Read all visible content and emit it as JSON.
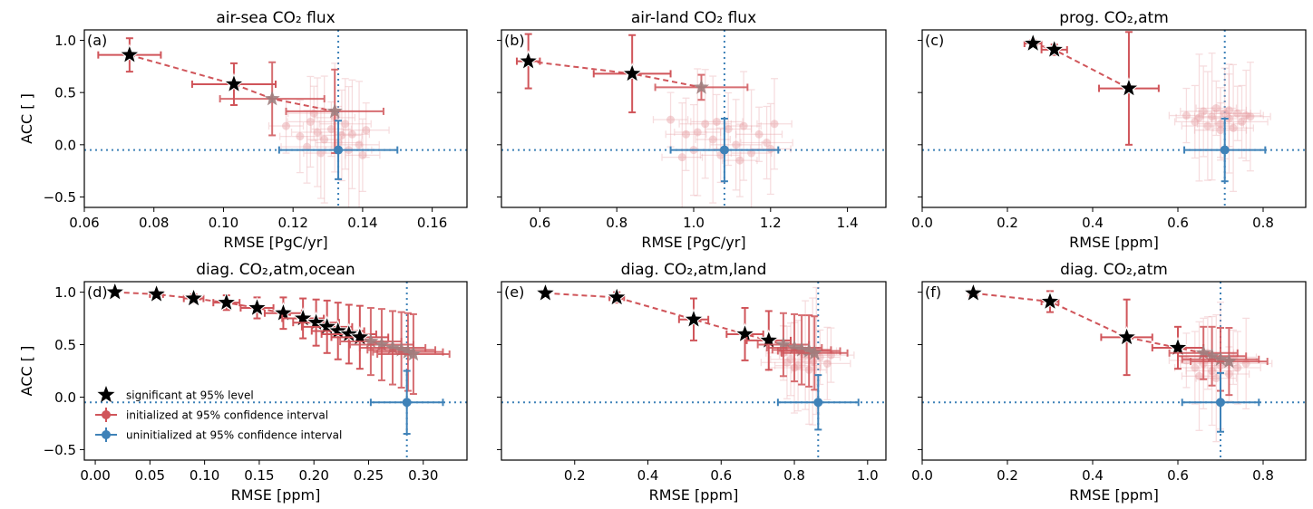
{
  "colors": {
    "initialized": "#d0555a",
    "initialized_faint": "#e7a0a4",
    "star_faded": "#9e7e7e",
    "uninitialized": "#3f82b8",
    "reference_line": "#3f82b8"
  },
  "chart_data": [
    {
      "type": "scatter",
      "panel_label": "(a)",
      "title": "air-sea CO₂ flux",
      "xlabel": "RMSE [PgC/yr]",
      "ylabel": "ACC [ ]",
      "xlim": [
        0.06,
        0.17
      ],
      "ylim": [
        -0.6,
        1.1
      ],
      "xticks": [
        0.06,
        0.08,
        0.1,
        0.12,
        0.14,
        0.16
      ],
      "xtick_labels": [
        "0.06",
        "0.08",
        "0.10",
        "0.12",
        "0.14",
        "0.16"
      ],
      "yticks": [
        -0.5,
        0.0,
        0.5,
        1.0
      ],
      "ytick_labels": [
        "−0.5",
        "0.0",
        "0.5",
        "1.0"
      ],
      "show_yticklabels": true,
      "initialized": [
        {
          "lead": 1,
          "x": 0.073,
          "y": 0.86,
          "xerr": 0.009,
          "yerr": 0.16,
          "significant": true,
          "label": "1"
        },
        {
          "lead": 2,
          "x": 0.103,
          "y": 0.58,
          "xerr": 0.012,
          "yerr": 0.2,
          "significant": true,
          "label": "2"
        },
        {
          "lead": 3,
          "x": 0.114,
          "y": 0.44,
          "xerr": 0.015,
          "yerr": 0.35,
          "significant": false,
          "label": ""
        },
        {
          "lead": 4,
          "x": 0.132,
          "y": 0.32,
          "xerr": 0.014,
          "yerr": 0.4,
          "significant": false,
          "label": ""
        }
      ],
      "faded_cloud": [
        [
          0.118,
          0.18
        ],
        [
          0.122,
          0.08
        ],
        [
          0.125,
          0.22
        ],
        [
          0.127,
          0.12
        ],
        [
          0.129,
          0.05
        ],
        [
          0.131,
          0.15
        ],
        [
          0.133,
          0.02
        ],
        [
          0.135,
          0.2
        ],
        [
          0.137,
          0.1
        ],
        [
          0.139,
          0.0
        ],
        [
          0.141,
          0.14
        ],
        [
          0.124,
          -0.02
        ],
        [
          0.128,
          -0.08
        ],
        [
          0.132,
          0.26
        ],
        [
          0.136,
          -0.05
        ],
        [
          0.126,
          0.3
        ],
        [
          0.14,
          -0.1
        ],
        [
          0.134,
          0.09
        ]
      ],
      "uninitialized": {
        "x": 0.133,
        "y": -0.05,
        "xerr": 0.017,
        "yerr": 0.28
      },
      "ref_lines": {
        "x": 0.133,
        "y": -0.05
      }
    },
    {
      "type": "scatter",
      "panel_label": "(b)",
      "title": "air-land CO₂ flux",
      "xlabel": "RMSE [PgC/yr]",
      "ylabel": "",
      "xlim": [
        0.5,
        1.5
      ],
      "ylim": [
        -0.6,
        1.1
      ],
      "xticks": [
        0.6,
        0.8,
        1.0,
        1.2,
        1.4
      ],
      "xtick_labels": [
        "0.6",
        "0.8",
        "1.0",
        "1.2",
        "1.4"
      ],
      "yticks": [
        -0.5,
        0.0,
        0.5,
        1.0
      ],
      "ytick_labels": [
        "−0.5",
        "0.0",
        "0.5",
        "1.0"
      ],
      "show_yticklabels": false,
      "initialized": [
        {
          "lead": 1,
          "x": 0.57,
          "y": 0.8,
          "xerr": 0.03,
          "yerr": 0.26,
          "significant": true,
          "label": "1"
        },
        {
          "lead": 2,
          "x": 0.84,
          "y": 0.68,
          "xerr": 0.1,
          "yerr": 0.37,
          "significant": true,
          "label": "2"
        },
        {
          "lead": 3,
          "x": 1.02,
          "y": 0.55,
          "xerr": 0.12,
          "yerr": 0.12,
          "significant": false,
          "label": ""
        }
      ],
      "faded_cloud": [
        [
          0.94,
          0.24
        ],
        [
          0.98,
          0.1
        ],
        [
          1.0,
          -0.05
        ],
        [
          1.03,
          0.2
        ],
        [
          1.05,
          0.05
        ],
        [
          1.07,
          -0.1
        ],
        [
          1.09,
          0.15
        ],
        [
          1.11,
          0.0
        ],
        [
          1.13,
          0.18
        ],
        [
          1.15,
          -0.08
        ],
        [
          1.17,
          0.1
        ],
        [
          1.19,
          0.02
        ],
        [
          1.21,
          0.2
        ],
        [
          0.97,
          -0.12
        ],
        [
          1.01,
          0.12
        ],
        [
          1.06,
          0.22
        ],
        [
          1.12,
          -0.15
        ],
        [
          1.2,
          -0.04
        ]
      ],
      "uninitialized": {
        "x": 1.08,
        "y": -0.05,
        "xerr": 0.14,
        "yerr": 0.3
      },
      "ref_lines": {
        "x": 1.08,
        "y": -0.05
      }
    },
    {
      "type": "scatter",
      "panel_label": "(c)",
      "title": "prog. CO₂,atm",
      "xlabel": "RMSE [ppm]",
      "ylabel": "",
      "xlim": [
        0.0,
        0.9
      ],
      "ylim": [
        -0.6,
        1.1
      ],
      "xticks": [
        0.0,
        0.2,
        0.4,
        0.6,
        0.8
      ],
      "xtick_labels": [
        "0.0",
        "0.2",
        "0.4",
        "0.6",
        "0.8"
      ],
      "yticks": [
        -0.5,
        0.0,
        0.5,
        1.0
      ],
      "ytick_labels": [
        "−0.5",
        "0.0",
        "0.5",
        "1.0"
      ],
      "show_yticklabels": false,
      "initialized": [
        {
          "lead": 1,
          "x": 0.26,
          "y": 0.97,
          "xerr": 0.02,
          "yerr": 0.03,
          "significant": true,
          "label": "1"
        },
        {
          "lead": 2,
          "x": 0.31,
          "y": 0.91,
          "xerr": 0.03,
          "yerr": 0.05,
          "significant": true,
          "label": "2"
        },
        {
          "lead": 3,
          "x": 0.485,
          "y": 0.54,
          "xerr": 0.07,
          "yerr": 0.54,
          "significant": true,
          "label": "3"
        }
      ],
      "faded_cloud": [
        [
          0.62,
          0.28
        ],
        [
          0.64,
          0.22
        ],
        [
          0.66,
          0.32
        ],
        [
          0.67,
          0.18
        ],
        [
          0.68,
          0.27
        ],
        [
          0.69,
          0.35
        ],
        [
          0.7,
          0.2
        ],
        [
          0.71,
          0.3
        ],
        [
          0.72,
          0.25
        ],
        [
          0.73,
          0.16
        ],
        [
          0.74,
          0.3
        ],
        [
          0.75,
          0.22
        ],
        [
          0.76,
          0.28
        ],
        [
          0.77,
          0.27
        ],
        [
          0.65,
          0.26
        ],
        [
          0.7,
          0.14
        ],
        [
          0.72,
          0.33
        ]
      ],
      "uninitialized": {
        "x": 0.71,
        "y": -0.05,
        "xerr": 0.095,
        "yerr": 0.3
      },
      "ref_lines": {
        "x": 0.71,
        "y": -0.05
      }
    },
    {
      "type": "scatter",
      "panel_label": "(d)",
      "title": "diag. CO₂,atm,ocean",
      "xlabel": "RMSE [ppm]",
      "ylabel": "ACC [ ]",
      "xlim": [
        -0.01,
        0.34
      ],
      "ylim": [
        -0.6,
        1.1
      ],
      "xticks": [
        0.0,
        0.05,
        0.1,
        0.15,
        0.2,
        0.25,
        0.3
      ],
      "xtick_labels": [
        "0.00",
        "0.05",
        "0.10",
        "0.15",
        "0.20",
        "0.25",
        "0.30"
      ],
      "yticks": [
        -0.5,
        0.0,
        0.5,
        1.0
      ],
      "ytick_labels": [
        "−0.5",
        "0.0",
        "0.5",
        "1.0"
      ],
      "show_yticklabels": true,
      "initialized": [
        {
          "lead": 1,
          "x": 0.018,
          "y": 1.0,
          "xerr": 0.003,
          "yerr": 0.01,
          "significant": true,
          "label": "1"
        },
        {
          "lead": 2,
          "x": 0.056,
          "y": 0.98,
          "xerr": 0.006,
          "yerr": 0.02,
          "significant": true,
          "label": "2"
        },
        {
          "lead": 3,
          "x": 0.09,
          "y": 0.94,
          "xerr": 0.009,
          "yerr": 0.04,
          "significant": true,
          "label": "3"
        },
        {
          "lead": 4,
          "x": 0.12,
          "y": 0.9,
          "xerr": 0.012,
          "yerr": 0.07,
          "significant": true,
          "label": "4"
        },
        {
          "lead": 5,
          "x": 0.148,
          "y": 0.85,
          "xerr": 0.015,
          "yerr": 0.1,
          "significant": true,
          "label": "5"
        },
        {
          "lead": 6,
          "x": 0.172,
          "y": 0.8,
          "xerr": 0.017,
          "yerr": 0.15,
          "significant": true,
          "label": "6"
        },
        {
          "lead": 7,
          "x": 0.19,
          "y": 0.75,
          "xerr": 0.019,
          "yerr": 0.19,
          "significant": true,
          "label": "7"
        },
        {
          "lead": 8,
          "x": 0.202,
          "y": 0.71,
          "xerr": 0.021,
          "yerr": 0.22,
          "significant": true,
          "label": "8"
        },
        {
          "lead": 9,
          "x": 0.212,
          "y": 0.67,
          "xerr": 0.023,
          "yerr": 0.25,
          "significant": true,
          "label": "9"
        },
        {
          "lead": 10,
          "x": 0.222,
          "y": 0.63,
          "xerr": 0.024,
          "yerr": 0.27,
          "significant": true,
          "label": "10"
        },
        {
          "lead": 11,
          "x": 0.232,
          "y": 0.6,
          "xerr": 0.025,
          "yerr": 0.28,
          "significant": true,
          "label": "11"
        },
        {
          "lead": 12,
          "x": 0.242,
          "y": 0.57,
          "xerr": 0.026,
          "yerr": 0.3,
          "significant": true,
          "label": "12"
        },
        {
          "lead": 13,
          "x": 0.252,
          "y": 0.53,
          "xerr": 0.028,
          "yerr": 0.32,
          "significant": false,
          "label": ""
        },
        {
          "lead": 14,
          "x": 0.262,
          "y": 0.5,
          "xerr": 0.029,
          "yerr": 0.34,
          "significant": false,
          "label": ""
        },
        {
          "lead": 15,
          "x": 0.272,
          "y": 0.47,
          "xerr": 0.03,
          "yerr": 0.35,
          "significant": false,
          "label": ""
        },
        {
          "lead": 16,
          "x": 0.28,
          "y": 0.45,
          "xerr": 0.031,
          "yerr": 0.36,
          "significant": false,
          "label": ""
        },
        {
          "lead": 17,
          "x": 0.286,
          "y": 0.43,
          "xerr": 0.032,
          "yerr": 0.37,
          "significant": false,
          "label": ""
        },
        {
          "lead": 18,
          "x": 0.291,
          "y": 0.41,
          "xerr": 0.033,
          "yerr": 0.38,
          "significant": false,
          "label": ""
        }
      ],
      "faded_cloud": [],
      "uninitialized": {
        "x": 0.285,
        "y": -0.05,
        "xerr": 0.033,
        "yerr": 0.3
      },
      "ref_lines": {
        "x": 0.285,
        "y": -0.05
      },
      "legend": {
        "location": "lower-left",
        "entries": [
          {
            "marker": "star",
            "label": "significant at 95% level"
          },
          {
            "marker": "errorbar-initialized",
            "label": "initialized at 95% confidence interval"
          },
          {
            "marker": "errorbar-uninitialized",
            "label": "uninitialized at 95% confidence interval"
          }
        ]
      }
    },
    {
      "type": "scatter",
      "panel_label": "(e)",
      "title": "diag. CO₂,atm,land",
      "xlabel": "RMSE [ppm]",
      "ylabel": "",
      "xlim": [
        0.0,
        1.05
      ],
      "ylim": [
        -0.6,
        1.1
      ],
      "xticks": [
        0.2,
        0.4,
        0.6,
        0.8,
        1.0
      ],
      "xtick_labels": [
        "0.2",
        "0.4",
        "0.6",
        "0.8",
        "1.0"
      ],
      "yticks": [
        -0.5,
        0.0,
        0.5,
        1.0
      ],
      "ytick_labels": [
        "−0.5",
        "0.0",
        "0.5",
        "1.0"
      ],
      "show_yticklabels": false,
      "initialized": [
        {
          "lead": 1,
          "x": 0.12,
          "y": 0.99,
          "xerr": 0.01,
          "yerr": 0.02,
          "significant": true,
          "label": "1"
        },
        {
          "lead": 2,
          "x": 0.315,
          "y": 0.95,
          "xerr": 0.02,
          "yerr": 0.05,
          "significant": true,
          "label": "2"
        },
        {
          "lead": 3,
          "x": 0.525,
          "y": 0.74,
          "xerr": 0.04,
          "yerr": 0.2,
          "significant": true,
          "label": "3"
        },
        {
          "lead": 4,
          "x": 0.665,
          "y": 0.6,
          "xerr": 0.05,
          "yerr": 0.25,
          "significant": true,
          "label": "4"
        },
        {
          "lead": 5,
          "x": 0.73,
          "y": 0.54,
          "xerr": 0.06,
          "yerr": 0.28,
          "significant": true,
          "label": "5"
        },
        {
          "lead": 6,
          "x": 0.77,
          "y": 0.5,
          "xerr": 0.07,
          "yerr": 0.3,
          "significant": false,
          "label": ""
        },
        {
          "lead": 7,
          "x": 0.8,
          "y": 0.47,
          "xerr": 0.075,
          "yerr": 0.32,
          "significant": false,
          "label": ""
        },
        {
          "lead": 8,
          "x": 0.82,
          "y": 0.45,
          "xerr": 0.08,
          "yerr": 0.33,
          "significant": false,
          "label": ""
        },
        {
          "lead": 9,
          "x": 0.84,
          "y": 0.44,
          "xerr": 0.085,
          "yerr": 0.34,
          "significant": false,
          "label": ""
        },
        {
          "lead": 10,
          "x": 0.855,
          "y": 0.42,
          "xerr": 0.09,
          "yerr": 0.35,
          "significant": false,
          "label": ""
        }
      ],
      "faded_cloud": [
        [
          0.77,
          0.42
        ],
        [
          0.79,
          0.36
        ],
        [
          0.81,
          0.3
        ],
        [
          0.83,
          0.4
        ],
        [
          0.85,
          0.34
        ],
        [
          0.87,
          0.38
        ],
        [
          0.89,
          0.32
        ],
        [
          0.8,
          0.28
        ],
        [
          0.84,
          0.26
        ],
        [
          0.86,
          0.44
        ],
        [
          0.9,
          0.4
        ],
        [
          0.78,
          0.33
        ]
      ],
      "uninitialized": {
        "x": 0.865,
        "y": -0.05,
        "xerr": 0.11,
        "yerr": 0.26
      },
      "ref_lines": {
        "x": 0.865,
        "y": -0.05
      }
    },
    {
      "type": "scatter",
      "panel_label": "(f)",
      "title": "diag. CO₂,atm",
      "xlabel": "RMSE [ppm]",
      "ylabel": "",
      "xlim": [
        0.0,
        0.9
      ],
      "ylim": [
        -0.6,
        1.1
      ],
      "xticks": [
        0.0,
        0.2,
        0.4,
        0.6,
        0.8
      ],
      "xtick_labels": [
        "0.0",
        "0.2",
        "0.4",
        "0.6",
        "0.8"
      ],
      "yticks": [
        -0.5,
        0.0,
        0.5,
        1.0
      ],
      "ytick_labels": [
        "−0.5",
        "0.0",
        "0.5",
        "1.0"
      ],
      "show_yticklabels": false,
      "initialized": [
        {
          "lead": 1,
          "x": 0.12,
          "y": 0.99,
          "xerr": 0.01,
          "yerr": 0.02,
          "significant": true,
          "label": "1"
        },
        {
          "lead": 2,
          "x": 0.3,
          "y": 0.91,
          "xerr": 0.02,
          "yerr": 0.1,
          "significant": true,
          "label": "2"
        },
        {
          "lead": 3,
          "x": 0.48,
          "y": 0.57,
          "xerr": 0.06,
          "yerr": 0.36,
          "significant": true,
          "label": "3"
        },
        {
          "lead": 4,
          "x": 0.6,
          "y": 0.47,
          "xerr": 0.06,
          "yerr": 0.2,
          "significant": true,
          "label": "4"
        },
        {
          "lead": 5,
          "x": 0.66,
          "y": 0.42,
          "xerr": 0.08,
          "yerr": 0.25,
          "significant": false,
          "label": ""
        },
        {
          "lead": 6,
          "x": 0.68,
          "y": 0.39,
          "xerr": 0.08,
          "yerr": 0.28,
          "significant": false,
          "label": ""
        },
        {
          "lead": 7,
          "x": 0.7,
          "y": 0.36,
          "xerr": 0.09,
          "yerr": 0.3,
          "significant": false,
          "label": ""
        },
        {
          "lead": 8,
          "x": 0.72,
          "y": 0.34,
          "xerr": 0.09,
          "yerr": 0.32,
          "significant": false,
          "label": ""
        }
      ],
      "faded_cloud": [
        [
          0.62,
          0.35
        ],
        [
          0.64,
          0.28
        ],
        [
          0.66,
          0.32
        ],
        [
          0.68,
          0.25
        ],
        [
          0.7,
          0.3
        ],
        [
          0.72,
          0.22
        ],
        [
          0.74,
          0.28
        ],
        [
          0.76,
          0.32
        ],
        [
          0.65,
          0.2
        ],
        [
          0.69,
          0.18
        ],
        [
          0.73,
          0.38
        ],
        [
          0.67,
          0.42
        ]
      ],
      "uninitialized": {
        "x": 0.7,
        "y": -0.05,
        "xerr": 0.09,
        "yerr": 0.28
      },
      "ref_lines": {
        "x": 0.7,
        "y": -0.05
      }
    }
  ]
}
